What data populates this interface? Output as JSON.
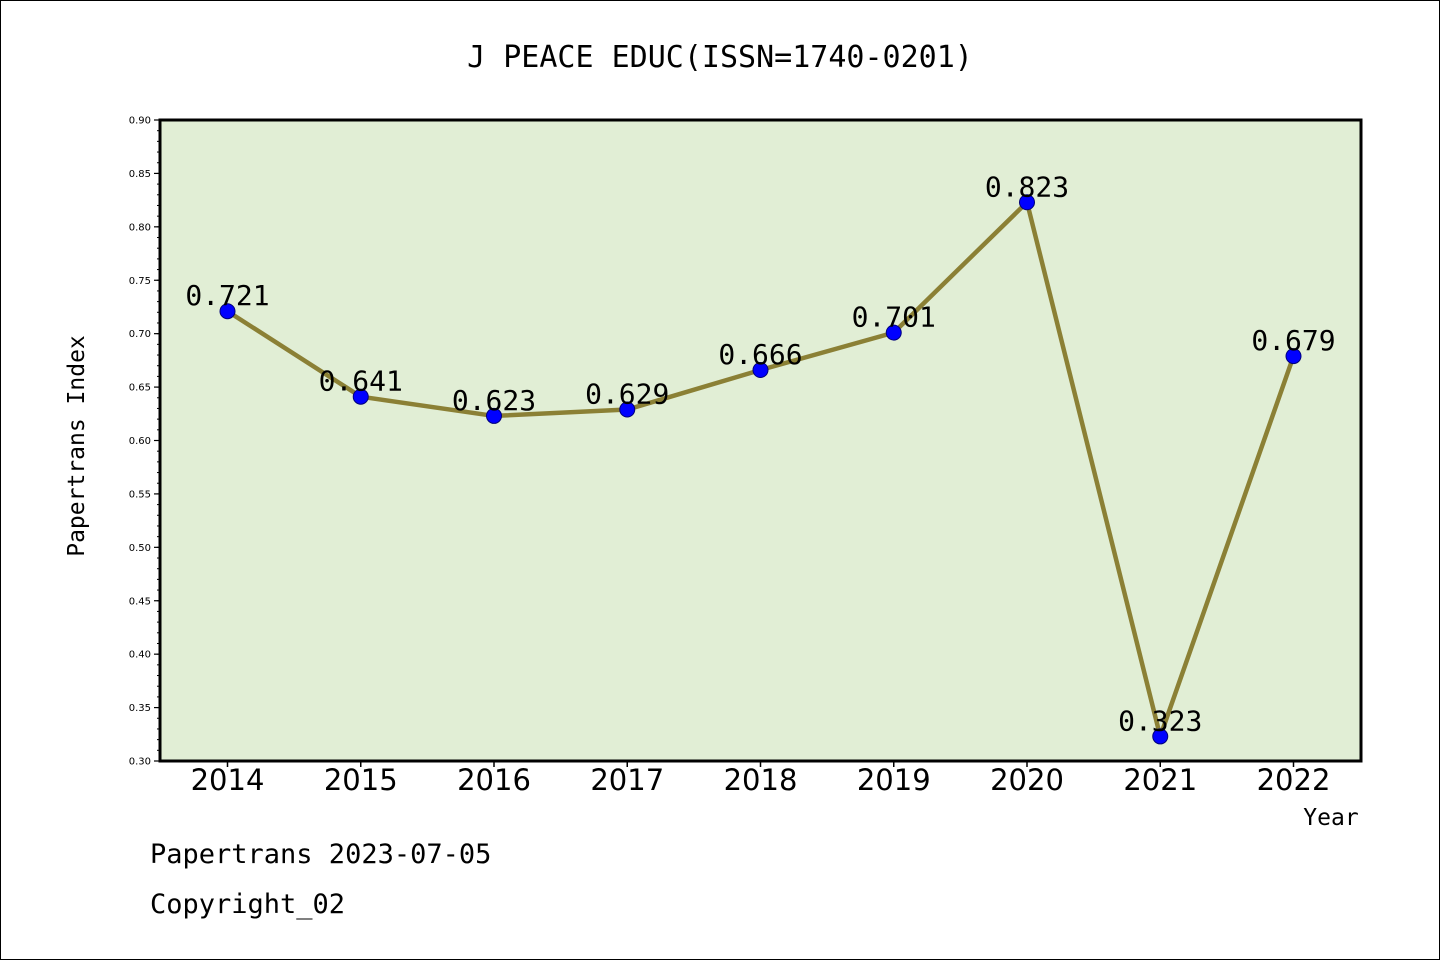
{
  "chart_data": {
    "type": "line",
    "title": "J PEACE EDUC(ISSN=1740-0201)",
    "xlabel": "Year",
    "ylabel": "Papertrans Index",
    "categories": [
      "2014",
      "2015",
      "2016",
      "2017",
      "2018",
      "2019",
      "2020",
      "2021",
      "2022"
    ],
    "series": [
      {
        "values": [
          0.721,
          0.641,
          0.623,
          0.629,
          0.666,
          0.701,
          0.823,
          0.323,
          0.679
        ]
      }
    ],
    "data_labels": [
      "0.721",
      "0.641",
      "0.623",
      "0.629",
      "0.666",
      "0.701",
      "0.823",
      "0.323",
      "0.679"
    ],
    "ylim": [
      0.3,
      0.9
    ],
    "yticks": [
      "0.30",
      "0.35",
      "0.40",
      "0.45",
      "0.50",
      "0.55",
      "0.60",
      "0.65",
      "0.70",
      "0.75",
      "0.80",
      "0.85",
      "0.90"
    ],
    "grid": false,
    "colors": {
      "plot_background": "#e1eed5",
      "line": "#8b8035",
      "marker": "#0000ff"
    }
  },
  "footer": {
    "line1": "Papertrans 2023-07-05",
    "line2": "Copyright_02"
  }
}
